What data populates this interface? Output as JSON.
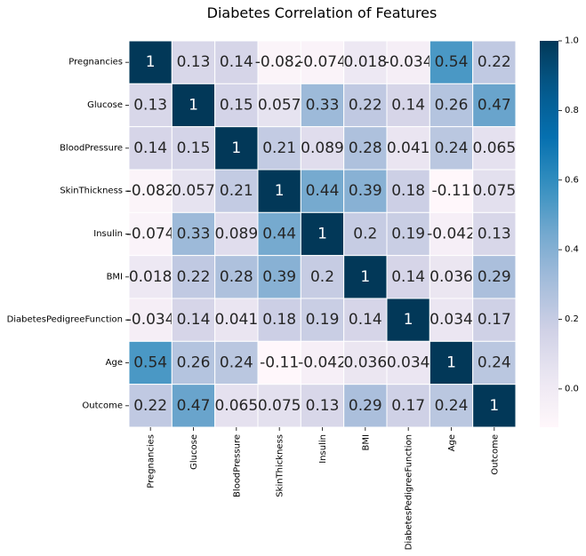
{
  "chart_data": {
    "type": "heatmap",
    "title": "Diabetes Correlation of Features",
    "colormap": "PuBu",
    "vmin": -0.11,
    "vmax": 1,
    "row_labels": [
      "Pregnancies",
      "Glucose",
      "BloodPressure",
      "SkinThickness",
      "Insulin",
      "BMI",
      "DiabetesPedigreeFunction",
      "Age",
      "Outcome"
    ],
    "col_labels": [
      "Pregnancies",
      "Glucose",
      "BloodPressure",
      "SkinThickness",
      "Insulin",
      "BMI",
      "DiabetesPedigreeFunction",
      "Age",
      "Outcome"
    ],
    "values": [
      [
        1,
        0.13,
        0.14,
        -0.082,
        -0.074,
        0.018,
        -0.034,
        0.54,
        0.22
      ],
      [
        0.13,
        1,
        0.15,
        0.057,
        0.33,
        0.22,
        0.14,
        0.26,
        0.47
      ],
      [
        0.14,
        0.15,
        1,
        0.21,
        0.089,
        0.28,
        0.041,
        0.24,
        0.065
      ],
      [
        -0.082,
        0.057,
        0.21,
        1,
        0.44,
        0.39,
        0.18,
        -0.11,
        0.075
      ],
      [
        -0.074,
        0.33,
        0.089,
        0.44,
        1,
        0.2,
        0.19,
        -0.042,
        0.13
      ],
      [
        0.018,
        0.22,
        0.28,
        0.39,
        0.2,
        1,
        0.14,
        0.036,
        0.29
      ],
      [
        -0.034,
        0.14,
        0.041,
        0.18,
        0.19,
        0.14,
        1,
        0.034,
        0.17
      ],
      [
        0.54,
        0.26,
        0.24,
        -0.11,
        -0.042,
        0.036,
        0.034,
        1,
        0.24
      ],
      [
        0.22,
        0.47,
        0.065,
        0.075,
        0.13,
        0.29,
        0.17,
        0.24,
        1
      ]
    ],
    "colorbar": {
      "ticks": [
        "0.0",
        "0.2",
        "0.4",
        "0.6",
        "0.8",
        "1.0"
      ]
    }
  }
}
